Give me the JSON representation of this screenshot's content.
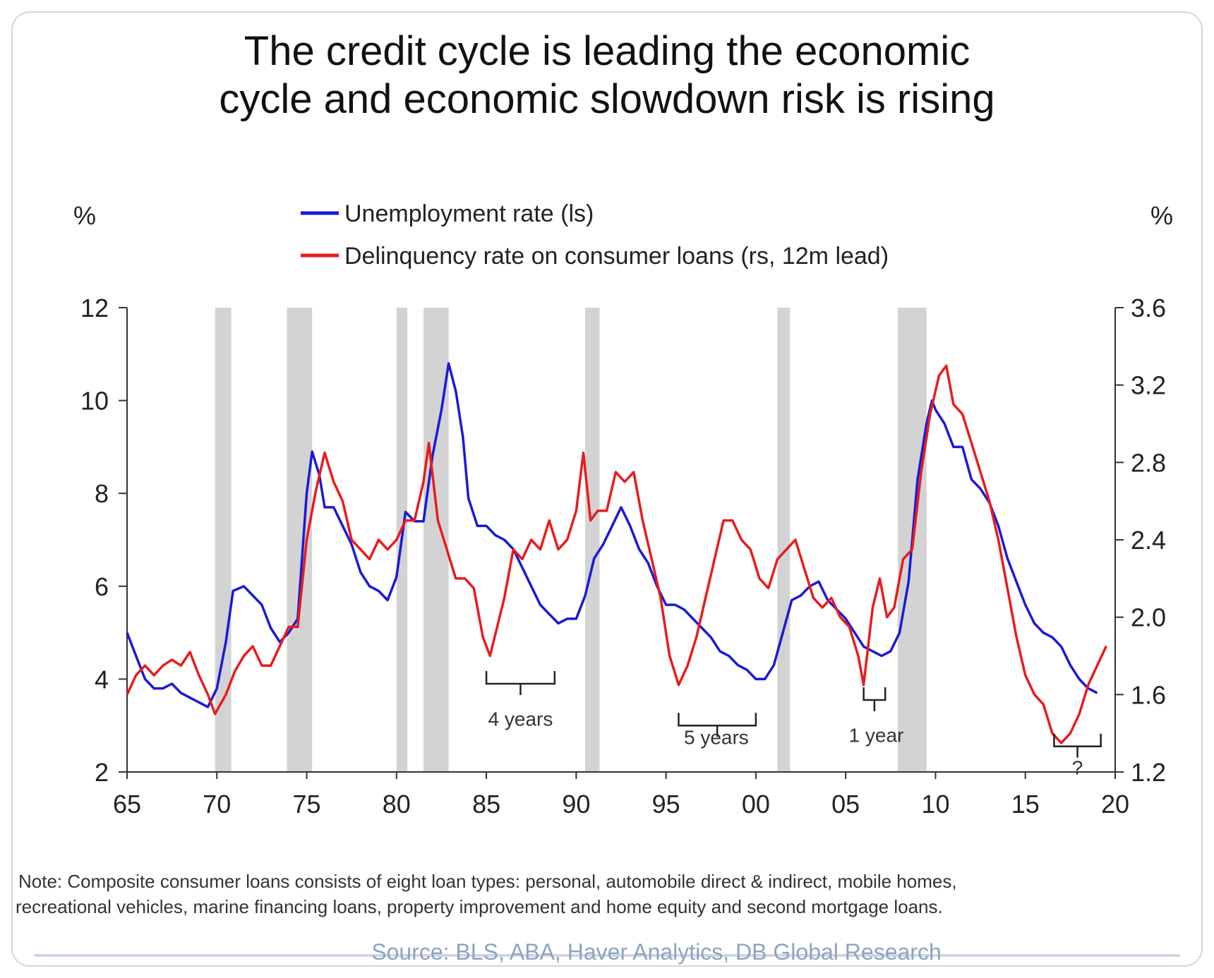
{
  "chart_data": {
    "type": "line",
    "title": "The credit cycle is leading the economic cycle and economic slowdown risk is rising",
    "title_lines": [
      "The credit cycle is leading the economic",
      "cycle and economic slowdown risk is rising"
    ],
    "left_unit": "%",
    "right_unit": "%",
    "x_range": [
      1965,
      2020
    ],
    "x_ticks": [
      "65",
      "70",
      "75",
      "80",
      "85",
      "90",
      "95",
      "00",
      "05",
      "10",
      "15",
      "20"
    ],
    "y_left": {
      "range": [
        2,
        12
      ],
      "ticks": [
        "2",
        "4",
        "6",
        "8",
        "10",
        "12"
      ]
    },
    "y_right": {
      "range": [
        1.2,
        3.6
      ],
      "ticks": [
        "1.2",
        "1.6",
        "2.0",
        "2.4",
        "2.8",
        "3.2",
        "3.6"
      ]
    },
    "legend_position": "top-center",
    "recessions": [
      [
        1969.9,
        1970.8
      ],
      [
        1973.9,
        1975.3
      ],
      [
        1980.0,
        1980.6
      ],
      [
        1981.5,
        1982.9
      ],
      [
        1990.5,
        1991.3
      ],
      [
        2001.2,
        2001.9
      ],
      [
        2007.9,
        2009.5
      ]
    ],
    "series": [
      {
        "name": "Unemployment rate (ls)",
        "axis": "left",
        "color": "#1a1ad6",
        "points": [
          [
            1965.0,
            5.0
          ],
          [
            1965.5,
            4.5
          ],
          [
            1966.0,
            4.0
          ],
          [
            1966.5,
            3.8
          ],
          [
            1967.0,
            3.8
          ],
          [
            1967.5,
            3.9
          ],
          [
            1968.0,
            3.7
          ],
          [
            1968.5,
            3.6
          ],
          [
            1969.0,
            3.5
          ],
          [
            1969.5,
            3.4
          ],
          [
            1970.0,
            3.8
          ],
          [
            1970.5,
            4.8
          ],
          [
            1970.9,
            5.9
          ],
          [
            1971.5,
            6.0
          ],
          [
            1972.0,
            5.8
          ],
          [
            1972.5,
            5.6
          ],
          [
            1973.0,
            5.1
          ],
          [
            1973.5,
            4.8
          ],
          [
            1974.0,
            5.0
          ],
          [
            1974.5,
            5.3
          ],
          [
            1975.0,
            8.0
          ],
          [
            1975.3,
            8.9
          ],
          [
            1975.7,
            8.4
          ],
          [
            1976.0,
            7.7
          ],
          [
            1976.5,
            7.7
          ],
          [
            1977.0,
            7.3
          ],
          [
            1977.5,
            6.9
          ],
          [
            1978.0,
            6.3
          ],
          [
            1978.5,
            6.0
          ],
          [
            1979.0,
            5.9
          ],
          [
            1979.5,
            5.7
          ],
          [
            1980.0,
            6.2
          ],
          [
            1980.5,
            7.6
          ],
          [
            1981.0,
            7.4
          ],
          [
            1981.5,
            7.4
          ],
          [
            1982.0,
            8.8
          ],
          [
            1982.5,
            9.8
          ],
          [
            1982.9,
            10.8
          ],
          [
            1983.3,
            10.2
          ],
          [
            1983.7,
            9.2
          ],
          [
            1984.0,
            7.9
          ],
          [
            1984.5,
            7.3
          ],
          [
            1985.0,
            7.3
          ],
          [
            1985.5,
            7.1
          ],
          [
            1986.0,
            7.0
          ],
          [
            1986.5,
            6.8
          ],
          [
            1987.0,
            6.4
          ],
          [
            1987.5,
            6.0
          ],
          [
            1988.0,
            5.6
          ],
          [
            1988.5,
            5.4
          ],
          [
            1989.0,
            5.2
          ],
          [
            1989.5,
            5.3
          ],
          [
            1990.0,
            5.3
          ],
          [
            1990.5,
            5.8
          ],
          [
            1991.0,
            6.6
          ],
          [
            1991.5,
            6.9
          ],
          [
            1992.0,
            7.3
          ],
          [
            1992.5,
            7.7
          ],
          [
            1993.0,
            7.3
          ],
          [
            1993.5,
            6.8
          ],
          [
            1994.0,
            6.5
          ],
          [
            1994.5,
            6.0
          ],
          [
            1995.0,
            5.6
          ],
          [
            1995.5,
            5.6
          ],
          [
            1996.0,
            5.5
          ],
          [
            1996.5,
            5.3
          ],
          [
            1997.0,
            5.1
          ],
          [
            1997.5,
            4.9
          ],
          [
            1998.0,
            4.6
          ],
          [
            1998.5,
            4.5
          ],
          [
            1999.0,
            4.3
          ],
          [
            1999.5,
            4.2
          ],
          [
            2000.0,
            4.0
          ],
          [
            2000.5,
            4.0
          ],
          [
            2001.0,
            4.3
          ],
          [
            2001.5,
            5.0
          ],
          [
            2002.0,
            5.7
          ],
          [
            2002.5,
            5.8
          ],
          [
            2003.0,
            6.0
          ],
          [
            2003.5,
            6.1
          ],
          [
            2004.0,
            5.7
          ],
          [
            2004.5,
            5.5
          ],
          [
            2005.0,
            5.3
          ],
          [
            2005.5,
            5.0
          ],
          [
            2006.0,
            4.7
          ],
          [
            2006.5,
            4.6
          ],
          [
            2007.0,
            4.5
          ],
          [
            2007.5,
            4.6
          ],
          [
            2008.0,
            5.0
          ],
          [
            2008.5,
            6.1
          ],
          [
            2009.0,
            8.3
          ],
          [
            2009.5,
            9.5
          ],
          [
            2009.8,
            10.0
          ],
          [
            2010.0,
            9.8
          ],
          [
            2010.5,
            9.5
          ],
          [
            2011.0,
            9.0
          ],
          [
            2011.5,
            9.0
          ],
          [
            2012.0,
            8.3
          ],
          [
            2012.5,
            8.1
          ],
          [
            2013.0,
            7.8
          ],
          [
            2013.5,
            7.3
          ],
          [
            2014.0,
            6.6
          ],
          [
            2014.5,
            6.1
          ],
          [
            2015.0,
            5.6
          ],
          [
            2015.5,
            5.2
          ],
          [
            2016.0,
            5.0
          ],
          [
            2016.5,
            4.9
          ],
          [
            2017.0,
            4.7
          ],
          [
            2017.5,
            4.3
          ],
          [
            2018.0,
            4.0
          ],
          [
            2018.5,
            3.8
          ],
          [
            2019.0,
            3.7
          ]
        ]
      },
      {
        "name": "Delinquency rate on consumer loans (rs, 12m lead)",
        "axis": "right",
        "color": "#e81c1c",
        "points": [
          [
            1965.0,
            1.6
          ],
          [
            1965.5,
            1.7
          ],
          [
            1966.0,
            1.75
          ],
          [
            1966.5,
            1.7
          ],
          [
            1967.0,
            1.75
          ],
          [
            1967.5,
            1.78
          ],
          [
            1968.0,
            1.75
          ],
          [
            1968.5,
            1.82
          ],
          [
            1969.0,
            1.7
          ],
          [
            1969.5,
            1.6
          ],
          [
            1969.9,
            1.5
          ],
          [
            1970.5,
            1.6
          ],
          [
            1971.0,
            1.72
          ],
          [
            1971.5,
            1.8
          ],
          [
            1972.0,
            1.85
          ],
          [
            1972.5,
            1.75
          ],
          [
            1973.0,
            1.75
          ],
          [
            1973.5,
            1.85
          ],
          [
            1974.0,
            1.95
          ],
          [
            1974.5,
            1.95
          ],
          [
            1975.0,
            2.4
          ],
          [
            1975.5,
            2.65
          ],
          [
            1976.0,
            2.85
          ],
          [
            1976.5,
            2.7
          ],
          [
            1977.0,
            2.6
          ],
          [
            1977.5,
            2.4
          ],
          [
            1978.0,
            2.35
          ],
          [
            1978.5,
            2.3
          ],
          [
            1979.0,
            2.4
          ],
          [
            1979.5,
            2.35
          ],
          [
            1980.0,
            2.4
          ],
          [
            1980.5,
            2.5
          ],
          [
            1981.0,
            2.5
          ],
          [
            1981.5,
            2.7
          ],
          [
            1981.8,
            2.9
          ],
          [
            1982.3,
            2.5
          ],
          [
            1982.8,
            2.35
          ],
          [
            1983.3,
            2.2
          ],
          [
            1983.8,
            2.2
          ],
          [
            1984.3,
            2.15
          ],
          [
            1984.8,
            1.9
          ],
          [
            1985.2,
            1.8
          ],
          [
            1985.6,
            1.95
          ],
          [
            1986.0,
            2.1
          ],
          [
            1986.5,
            2.35
          ],
          [
            1987.0,
            2.3
          ],
          [
            1987.5,
            2.4
          ],
          [
            1988.0,
            2.35
          ],
          [
            1988.5,
            2.5
          ],
          [
            1989.0,
            2.35
          ],
          [
            1989.5,
            2.4
          ],
          [
            1990.0,
            2.55
          ],
          [
            1990.4,
            2.85
          ],
          [
            1990.8,
            2.5
          ],
          [
            1991.2,
            2.55
          ],
          [
            1991.7,
            2.55
          ],
          [
            1992.2,
            2.75
          ],
          [
            1992.7,
            2.7
          ],
          [
            1993.2,
            2.75
          ],
          [
            1993.7,
            2.5
          ],
          [
            1994.2,
            2.3
          ],
          [
            1994.7,
            2.1
          ],
          [
            1995.2,
            1.8
          ],
          [
            1995.7,
            1.65
          ],
          [
            1996.2,
            1.75
          ],
          [
            1996.7,
            1.9
          ],
          [
            1997.2,
            2.1
          ],
          [
            1997.7,
            2.3
          ],
          [
            1998.2,
            2.5
          ],
          [
            1998.7,
            2.5
          ],
          [
            1999.2,
            2.4
          ],
          [
            1999.7,
            2.35
          ],
          [
            2000.2,
            2.2
          ],
          [
            2000.7,
            2.15
          ],
          [
            2001.2,
            2.3
          ],
          [
            2001.7,
            2.35
          ],
          [
            2002.2,
            2.4
          ],
          [
            2002.7,
            2.25
          ],
          [
            2003.2,
            2.1
          ],
          [
            2003.7,
            2.05
          ],
          [
            2004.2,
            2.1
          ],
          [
            2004.7,
            2.0
          ],
          [
            2005.2,
            1.95
          ],
          [
            2005.7,
            1.8
          ],
          [
            2006.0,
            1.65
          ],
          [
            2006.5,
            2.05
          ],
          [
            2006.9,
            2.2
          ],
          [
            2007.3,
            2.0
          ],
          [
            2007.7,
            2.05
          ],
          [
            2008.2,
            2.3
          ],
          [
            2008.7,
            2.35
          ],
          [
            2009.2,
            2.75
          ],
          [
            2009.7,
            3.05
          ],
          [
            2010.2,
            3.25
          ],
          [
            2010.6,
            3.3
          ],
          [
            2011.0,
            3.1
          ],
          [
            2011.5,
            3.05
          ],
          [
            2012.0,
            2.9
          ],
          [
            2012.5,
            2.75
          ],
          [
            2013.0,
            2.6
          ],
          [
            2013.5,
            2.4
          ],
          [
            2014.0,
            2.15
          ],
          [
            2014.5,
            1.9
          ],
          [
            2015.0,
            1.7
          ],
          [
            2015.5,
            1.6
          ],
          [
            2016.0,
            1.55
          ],
          [
            2016.5,
            1.4
          ],
          [
            2017.0,
            1.35
          ],
          [
            2017.5,
            1.4
          ],
          [
            2018.0,
            1.5
          ],
          [
            2018.5,
            1.65
          ],
          [
            2019.0,
            1.75
          ],
          [
            2019.5,
            1.85
          ]
        ]
      }
    ],
    "annotations": [
      {
        "label": "4 years",
        "x_from": 1985.0,
        "x_to": 1988.8,
        "y_left": 3.9,
        "label_x": 1986.9,
        "label_y": 3.15
      },
      {
        "label": "5 years",
        "x_from": 1995.7,
        "x_to": 2000.0,
        "y_left": 3.0,
        "label_x": 1997.8,
        "label_y": 2.75
      },
      {
        "label": "1 year",
        "x_from": 2006.0,
        "x_to": 2007.2,
        "y_left": 3.55,
        "label_x": 2006.7,
        "label_y": 2.8
      },
      {
        "label": "?",
        "x_from": 2016.6,
        "x_to": 2019.2,
        "y_left": 2.55,
        "label_x": 2017.9,
        "label_y": 2.1
      }
    ]
  },
  "note": {
    "line1": "Note: Composite consumer loans consists of eight loan types: personal, automobile direct & indirect, mobile homes,",
    "line2": "recreational vehicles, marine financing loans, property improvement and home equity and second mortgage loans."
  },
  "source": "Source: BLS, ABA, Haver Analytics, DB Global Research"
}
